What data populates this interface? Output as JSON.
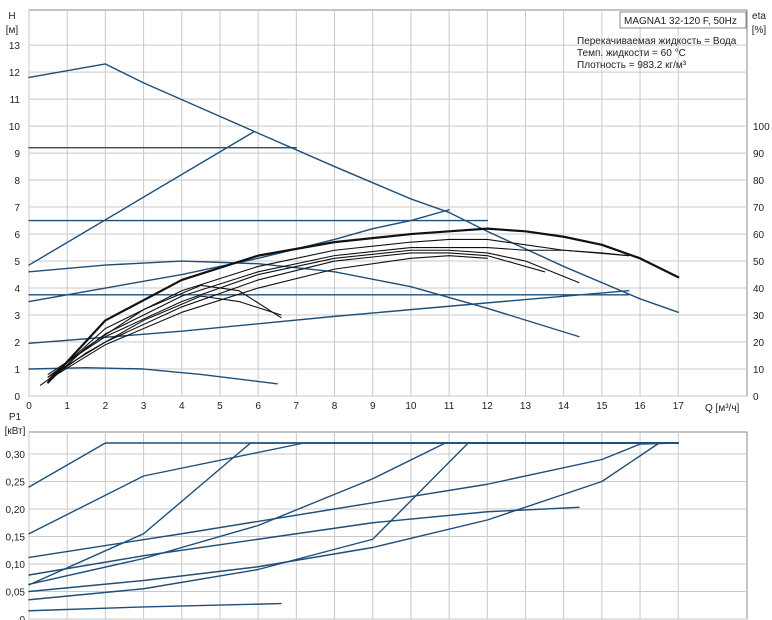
{
  "chart_data": [
    {
      "type": "line",
      "title": "MAGNA1 32-120 F, 50Hz",
      "annotations": [
        "Перекачиваемая жидкость = Вода",
        "Темп. жидкости = 60 °C",
        "Плотность = 983.2 кг/м³"
      ],
      "xlabel": "Q [м³/ч]",
      "ylabel": "H [м]",
      "y2label": "eta [%]",
      "xlim": [
        0,
        18.8
      ],
      "ylim": [
        0,
        14.3
      ],
      "y2lim": [
        0,
        143
      ],
      "x_ticks": [
        0,
        1,
        2,
        3,
        4,
        5,
        6,
        7,
        8,
        9,
        10,
        11,
        12,
        13,
        14,
        15,
        16,
        17
      ],
      "y_ticks": [
        0,
        1,
        2,
        3,
        4,
        5,
        6,
        7,
        8,
        9,
        10,
        11,
        12,
        13
      ],
      "y2_ticks": [
        0,
        10,
        20,
        30,
        40,
        50,
        60,
        70,
        80,
        90,
        100
      ],
      "grid": true,
      "colors": {
        "pump_curves": "#1f4e79",
        "efficiency_curves": "#111111",
        "grid": "#c9c9c9"
      },
      "series": [
        {
          "kind": "head",
          "x": [
            0,
            2,
            3,
            5.9,
            8,
            10,
            11,
            12,
            14,
            16,
            17
          ],
          "y": [
            11.8,
            12.3,
            11.6,
            9.8,
            8.5,
            7.3,
            6.8,
            6.1,
            4.8,
            3.6,
            3.1
          ]
        },
        {
          "kind": "head",
          "x": [
            0,
            5.9
          ],
          "y": [
            4.85,
            9.8
          ]
        },
        {
          "kind": "head",
          "x": [
            0,
            7
          ],
          "y": [
            9.2,
            9.2
          ]
        },
        {
          "kind": "head",
          "x": [
            0,
            12
          ],
          "y": [
            6.5,
            6.5
          ]
        },
        {
          "kind": "head",
          "x": [
            0,
            2,
            4,
            6,
            8,
            9,
            10,
            11
          ],
          "y": [
            3.5,
            4.0,
            4.5,
            5.1,
            5.8,
            6.2,
            6.5,
            6.9
          ]
        },
        {
          "kind": "head",
          "x": [
            0,
            15.7
          ],
          "y": [
            3.75,
            3.75
          ]
        },
        {
          "kind": "head",
          "x": [
            0,
            2,
            4,
            6,
            8,
            10,
            12,
            14.4
          ],
          "y": [
            4.6,
            4.85,
            5.0,
            4.9,
            4.6,
            4.05,
            3.25,
            2.2
          ]
        },
        {
          "kind": "head",
          "x": [
            0,
            4,
            8,
            12,
            15.7
          ],
          "y": [
            1.95,
            2.4,
            2.95,
            3.45,
            3.9
          ]
        },
        {
          "kind": "head",
          "x": [
            0,
            1.5,
            3,
            4.5,
            6.5
          ],
          "y": [
            1.0,
            1.05,
            1.0,
            0.8,
            0.45
          ]
        },
        {
          "kind": "efficiency",
          "x": [
            0.5,
            2,
            4,
            6,
            8,
            10,
            11,
            12,
            13,
            14,
            15,
            16,
            17
          ],
          "y": [
            5,
            28,
            43,
            52,
            57,
            60,
            61,
            62,
            61,
            59,
            56,
            51,
            44
          ]
        },
        {
          "kind": "efficiency",
          "x": [
            0.5,
            2,
            4,
            6,
            8,
            10,
            11,
            12,
            13,
            14,
            15.7
          ],
          "y": [
            6,
            25,
            39,
            48,
            54,
            57,
            58,
            58,
            56,
            54,
            52
          ]
        },
        {
          "kind": "efficiency",
          "x": [
            0.5,
            2,
            4,
            6,
            8,
            10,
            11,
            12,
            13,
            14,
            15,
            15.7
          ],
          "y": [
            7,
            23,
            37,
            46,
            52,
            55,
            55,
            55,
            54,
            54,
            53,
            52
          ]
        },
        {
          "kind": "efficiency",
          "x": [
            0.5,
            2,
            4,
            6,
            8,
            10,
            11,
            12,
            13,
            14.4
          ],
          "y": [
            8,
            22,
            35,
            45,
            51,
            54,
            54,
            53,
            50,
            42
          ]
        },
        {
          "kind": "efficiency",
          "x": [
            0.5,
            2,
            4,
            6,
            8,
            10,
            11,
            12,
            13.5
          ],
          "y": [
            7,
            20,
            33,
            43,
            50,
            53,
            53,
            52,
            46
          ]
        },
        {
          "kind": "efficiency",
          "x": [
            0.5,
            2,
            4,
            6,
            8,
            10,
            11,
            12
          ],
          "y": [
            6,
            19,
            31,
            40,
            47,
            51,
            52,
            51
          ]
        },
        {
          "kind": "efficiency",
          "x": [
            0.5,
            1.5,
            3,
            4.5,
            5.5,
            6.6
          ],
          "y": [
            5,
            18,
            32,
            41,
            39,
            29
          ]
        },
        {
          "kind": "efficiency",
          "x": [
            0.3,
            1.5,
            3,
            4.5,
            5.5,
            6.6
          ],
          "y": [
            4,
            16,
            28,
            37,
            35,
            30
          ]
        }
      ]
    },
    {
      "type": "line",
      "ylabel": "P1 [кВт]",
      "xlim": [
        0,
        18.8
      ],
      "ylim": [
        0,
        0.34
      ],
      "y_ticks": [
        "0",
        "0,05",
        "0,10",
        "0,15",
        "0,20",
        "0,25",
        "0,30"
      ],
      "y_tick_values": [
        0,
        0.05,
        0.1,
        0.15,
        0.2,
        0.25,
        0.3
      ],
      "grid": true,
      "series": [
        {
          "x": [
            0,
            2,
            17
          ],
          "y": [
            0.24,
            0.32,
            0.32
          ]
        },
        {
          "x": [
            0,
            3,
            7.2,
            17
          ],
          "y": [
            0.155,
            0.26,
            0.32,
            0.32
          ]
        },
        {
          "x": [
            0,
            4,
            8,
            12,
            15,
            16,
            17
          ],
          "y": [
            0.112,
            0.155,
            0.2,
            0.245,
            0.29,
            0.318,
            0.32
          ]
        },
        {
          "x": [
            0,
            3,
            6,
            9,
            12,
            14.4
          ],
          "y": [
            0.08,
            0.115,
            0.145,
            0.175,
            0.195,
            0.203
          ]
        },
        {
          "x": [
            0,
            3,
            6,
            9,
            12,
            15,
            16.5,
            17
          ],
          "y": [
            0.05,
            0.07,
            0.095,
            0.13,
            0.18,
            0.25,
            0.32,
            0.32
          ]
        },
        {
          "x": [
            0,
            3,
            6,
            9,
            11.5,
            17
          ],
          "y": [
            0.035,
            0.055,
            0.09,
            0.145,
            0.32,
            0.32
          ]
        },
        {
          "x": [
            0,
            3,
            6,
            9,
            10.9,
            17
          ],
          "y": [
            0.063,
            0.11,
            0.17,
            0.255,
            0.32,
            0.32
          ]
        },
        {
          "x": [
            0,
            3,
            5.8,
            17
          ],
          "y": [
            0.062,
            0.155,
            0.32,
            0.32
          ]
        },
        {
          "x": [
            0,
            3,
            6.6
          ],
          "y": [
            0.015,
            0.022,
            0.028
          ]
        }
      ]
    }
  ]
}
